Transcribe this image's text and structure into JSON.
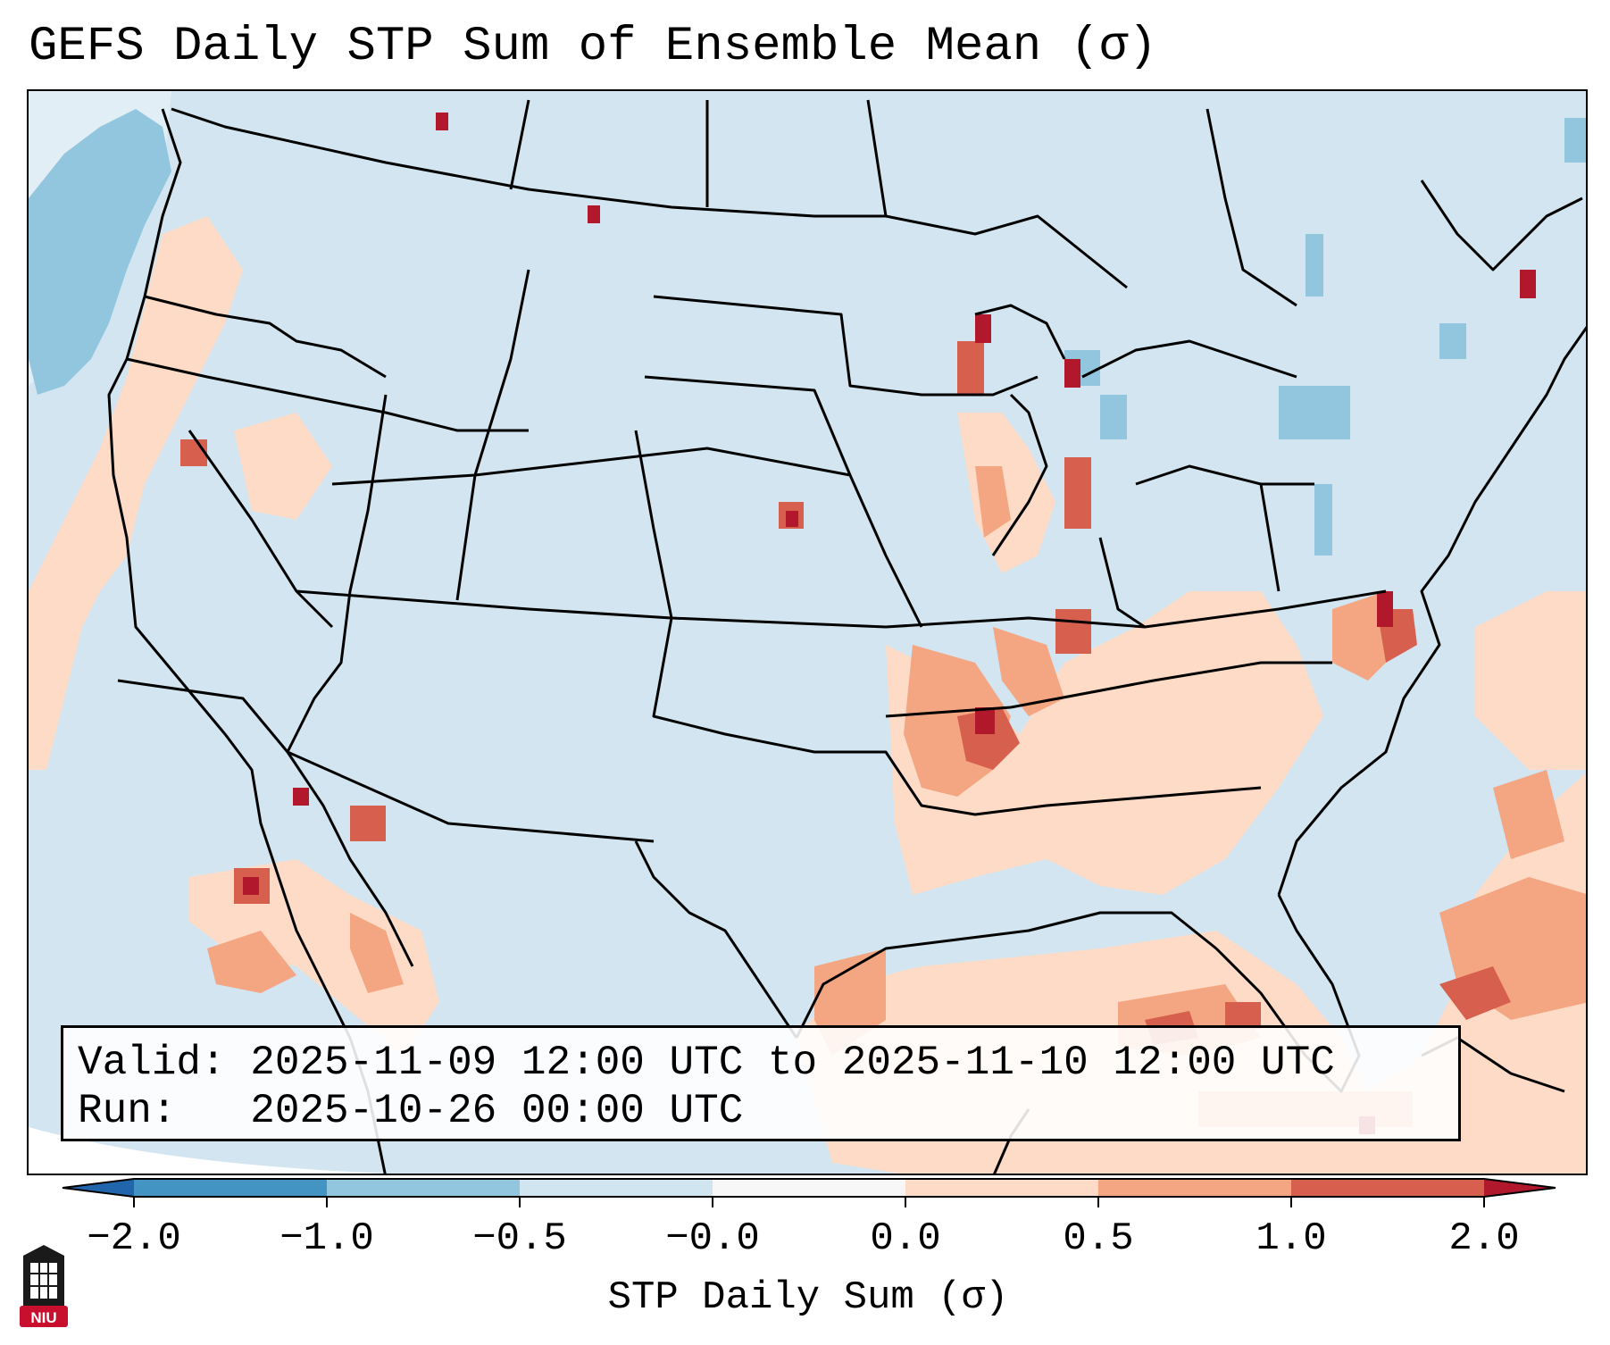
{
  "title": "GEFS Daily STP Sum of Ensemble Mean (σ)",
  "info": {
    "valid": "Valid: 2025-11-09 12:00 UTC to 2025-11-10 12:00 UTC",
    "run": "Run:   2025-10-26 00:00 UTC"
  },
  "colorbar": {
    "title": "STP Daily Sum (σ)",
    "ticks": [
      "−2.0",
      "−1.0",
      "−0.5",
      "−0.0",
      "0.0",
      "0.5",
      "1.0",
      "2.0"
    ],
    "colors": {
      "below_min": "#2166ac",
      "bin_m2_m1": "#4393c3",
      "bin_m1_m05": "#92c5de",
      "bin_m05_0": "#d1e5f0",
      "bin_0_0": "#f7f7f7",
      "bin_0_05": "#fddbc7",
      "bin_05_1": "#f4a582",
      "bin_1_2": "#d6604d",
      "above_max": "#b2182b"
    }
  },
  "logo": {
    "text": "NIU",
    "color": "#c8102e"
  }
}
